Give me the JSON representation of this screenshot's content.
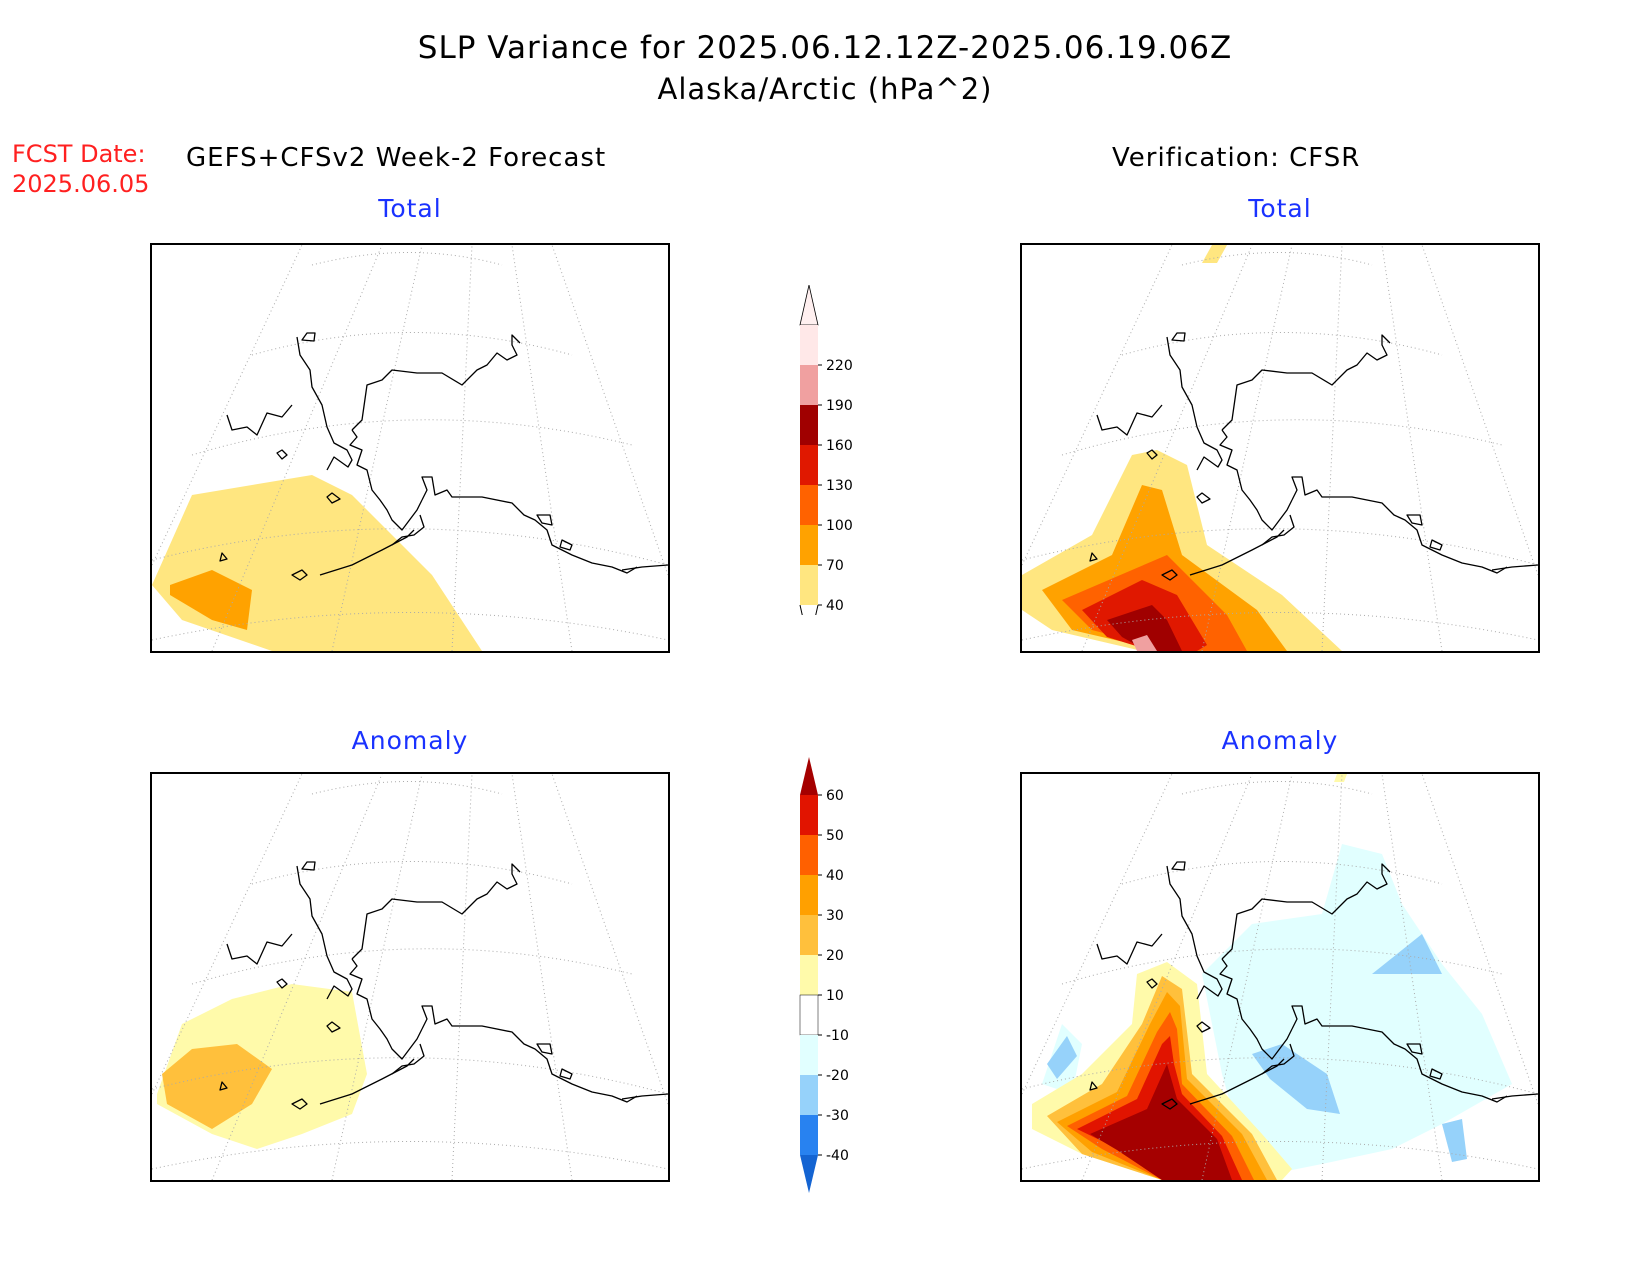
{
  "title": {
    "line1": "SLP Variance for 2025.06.12.12Z-2025.06.19.06Z",
    "line2": "Alaska/Arctic (hPa^2)"
  },
  "forecast_date": {
    "label": "FCST Date:",
    "value": "2025.06.05"
  },
  "left_header": "GEFS+CFSv2 Week-2 Forecast",
  "right_header": "Verification: CFSR",
  "panels": [
    {
      "label": "Total"
    },
    {
      "label": "Total"
    },
    {
      "label": "Anomaly"
    },
    {
      "label": "Anomaly"
    }
  ],
  "total_colorbar": {
    "levels": [
      "40",
      "70",
      "100",
      "130",
      "160",
      "190",
      "220"
    ],
    "colors": [
      "#ffe680",
      "#ffa200",
      "#ff6200",
      "#e01800",
      "#a00000",
      "#f0a0a0",
      "#ffe8e8"
    ]
  },
  "anomaly_colorbar": {
    "levels": [
      "-40",
      "-30",
      "-20",
      "-10",
      "10",
      "20",
      "30",
      "40",
      "50",
      "60"
    ],
    "colors": [
      "#1464d2",
      "#2882f0",
      "#96d2fa",
      "#e1ffff",
      "#ffffff",
      "#fffaaa",
      "#ffc03c",
      "#ffa000",
      "#ff6000",
      "#e11400",
      "#a50000"
    ]
  },
  "colors": {
    "title": "#000000",
    "fcst": "#ff2020",
    "panel_label": "#1a32ff"
  }
}
